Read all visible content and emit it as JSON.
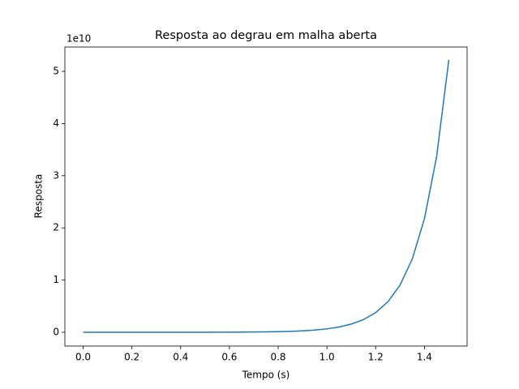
{
  "chart_data": {
    "type": "line",
    "title": "Resposta ao degrau em malha aberta",
    "x_label": "Tempo (s)",
    "y_label": "Resposta",
    "y_offset_label": "1e10",
    "x": [
      0,
      0.05,
      0.1,
      0.15,
      0.2,
      0.25,
      0.3,
      0.35,
      0.4,
      0.45,
      0.5,
      0.55,
      0.6,
      0.65,
      0.7,
      0.75,
      0.8,
      0.85,
      0.9,
      0.95,
      1.0,
      1.05,
      1.1,
      1.15,
      1.2,
      1.25,
      1.3,
      1.35,
      1.4,
      1.45,
      1.5
    ],
    "series": [
      {
        "name": "Resposta",
        "color": "#1f77b4",
        "values": [
          0,
          0,
          0,
          0,
          0,
          0,
          0,
          0,
          0,
          0,
          0,
          0.001,
          0.002,
          0.003,
          0.005,
          0.007,
          0.011,
          0.018,
          0.027,
          0.042,
          0.065,
          0.101,
          0.157,
          0.243,
          0.377,
          0.584,
          0.905,
          1.403,
          2.174,
          3.368,
          5.22
        ]
      }
    ],
    "xlim": [
      -0.075,
      1.575
    ],
    "xticks": [
      {
        "value": 0,
        "label": "0.0"
      },
      {
        "value": 0.2,
        "label": "0.2"
      },
      {
        "value": 0.4,
        "label": "0.4"
      },
      {
        "value": 0.6,
        "label": "0.6"
      },
      {
        "value": 0.8,
        "label": "0.8"
      },
      {
        "value": 1.0,
        "label": "1.0"
      },
      {
        "value": 1.2,
        "label": "1.2"
      },
      {
        "value": 1.4,
        "label": "1.4"
      }
    ],
    "ylim": [
      -0.264,
      5.466
    ],
    "yticks": [
      0,
      1,
      2,
      3,
      4,
      5
    ],
    "grid": false
  }
}
